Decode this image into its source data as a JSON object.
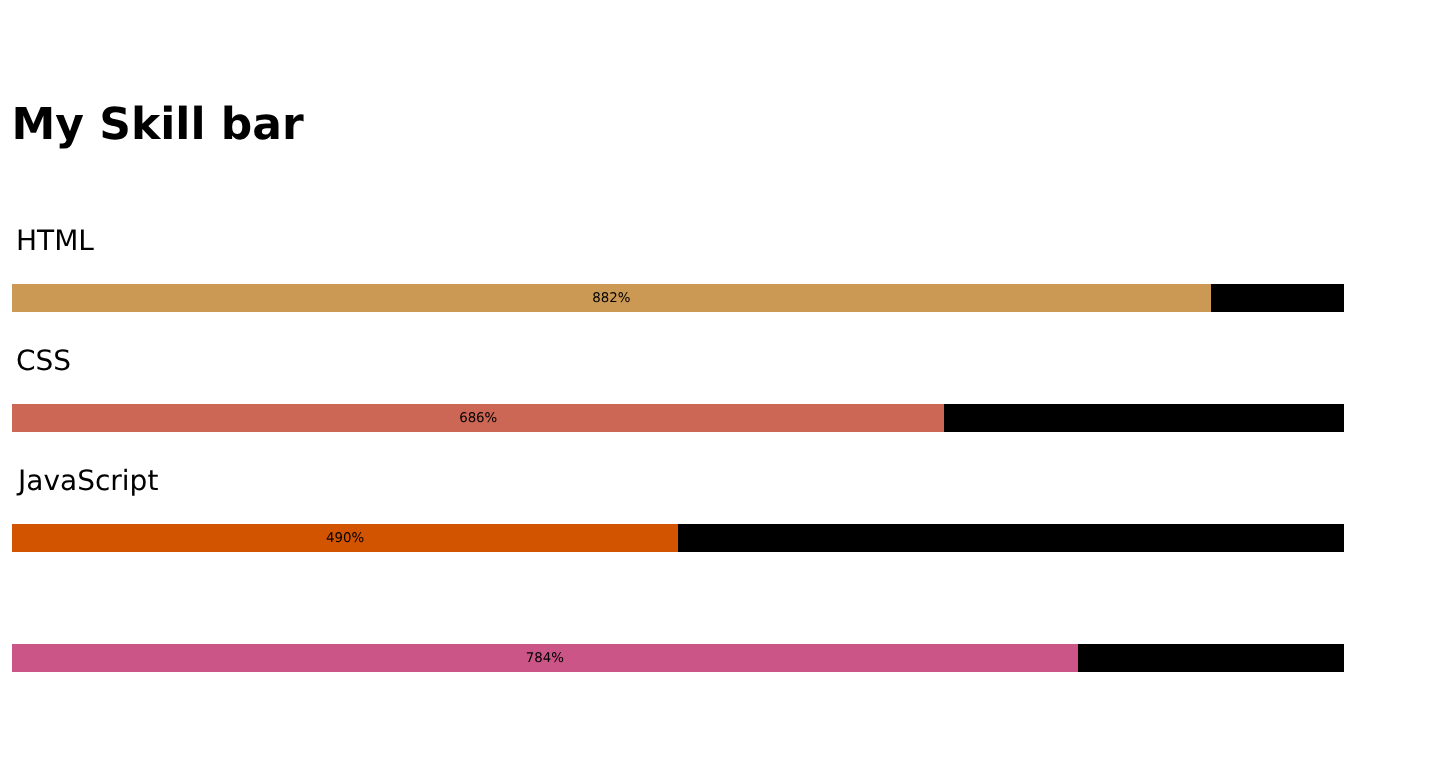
{
  "chart_data": {
    "type": "bar",
    "title": "My Skill bar",
    "orientation": "horizontal",
    "stacked": true,
    "tick_labels": "y",
    "categories": [
      "HTML",
      "CSS",
      "JavaScript",
      null
    ],
    "xlim": [
      0,
      980
    ],
    "series": [
      {
        "values": [
          882,
          686,
          490,
          784
        ],
        "colors": [
          "#cc9955",
          "#cc6655",
          "#d35400",
          "#cc5588"
        ],
        "value_labels": [
          "882%",
          "686%",
          "490%",
          "784%"
        ]
      },
      {
        "values": [
          98,
          294,
          490,
          196
        ],
        "color": "#000000"
      }
    ]
  }
}
